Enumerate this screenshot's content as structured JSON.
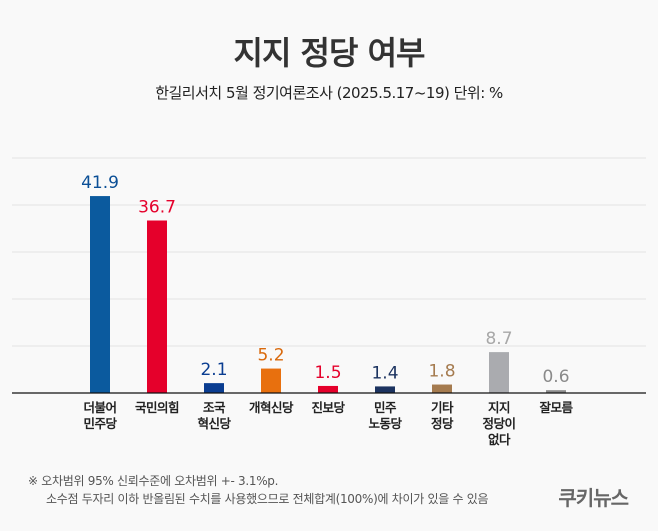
{
  "chart_data": {
    "type": "bar",
    "title": "지지 정당 여부",
    "subtitle": "한길리서치 5월 정기여론조사 (2025.5.17~19) 단위: %",
    "categories": [
      [
        "더불어",
        "민주당"
      ],
      [
        "국민의힘"
      ],
      [
        "조국",
        "혁신당"
      ],
      [
        "개혁신당"
      ],
      [
        "진보당"
      ],
      [
        "민주",
        "노동당"
      ],
      [
        "기타",
        "정당"
      ],
      [
        "지지",
        "정당이",
        "없다"
      ],
      [
        "잘모름"
      ]
    ],
    "values": [
      41.9,
      36.7,
      2.1,
      5.2,
      1.5,
      1.4,
      1.8,
      8.7,
      0.6
    ],
    "colors": [
      "#0b5a9e",
      "#e5002b",
      "#0a3d91",
      "#e8700e",
      "#e5002b",
      "#1c3360",
      "#a57b4f",
      "#aaabaf",
      "#8a8a8a"
    ],
    "label_colors": [
      "#0b4f96",
      "#e5002b",
      "#0a3d91",
      "#d9690c",
      "#e5002b",
      "#1c3360",
      "#a57b4f",
      "#a8a8a8",
      "#8a8a8a"
    ],
    "ylim": [
      0,
      50
    ],
    "grid": true,
    "legend": "none"
  },
  "footer": {
    "note1": "※ 오차범위 95% 신뢰수준에 오차범위 +- 3.1%p.",
    "note2": "소수점 두자리 이하 반올림된 수치를 사용했으므로 전체합계(100%)에 차이가 있을 수 있음",
    "logo": "쿠키뉴스"
  }
}
